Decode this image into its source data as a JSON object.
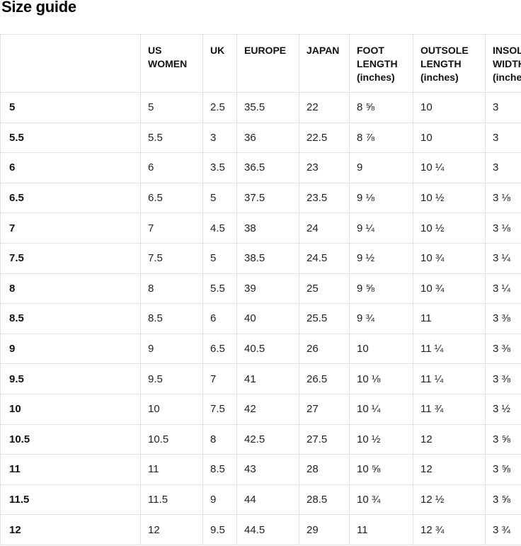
{
  "page": {
    "title": "Size guide"
  },
  "colors": {
    "background": "#ffffff",
    "border": "#e2e2e2",
    "title_text": "#000000",
    "header_text": "#111111",
    "cell_text": "#1f1f1f"
  },
  "table": {
    "columns": [
      {
        "key": "row_label",
        "label": ""
      },
      {
        "key": "us_women",
        "label": "US WOMEN"
      },
      {
        "key": "uk",
        "label": "UK"
      },
      {
        "key": "europe",
        "label": "EUROPE"
      },
      {
        "key": "japan",
        "label": "JAPAN"
      },
      {
        "key": "foot_length",
        "label": "FOOT LENGTH (inches)"
      },
      {
        "key": "outsole_length",
        "label": "OUTSOLE LENGTH (inches)"
      },
      {
        "key": "insole_width",
        "label": "INSOLE WIDTH (inches)"
      }
    ],
    "rows": [
      [
        "5",
        "5",
        "2.5",
        "35.5",
        "22",
        "8 ⅝",
        "10",
        "3"
      ],
      [
        "5.5",
        "5.5",
        "3",
        "36",
        "22.5",
        "8 ⅞",
        "10",
        "3"
      ],
      [
        "6",
        "6",
        "3.5",
        "36.5",
        "23",
        "9",
        "10 ¼",
        "3"
      ],
      [
        "6.5",
        "6.5",
        "5",
        "37.5",
        "23.5",
        "9 ⅛",
        "10 ½",
        "3 ⅛"
      ],
      [
        "7",
        "7",
        "4.5",
        "38",
        "24",
        "9 ¼",
        "10 ½",
        "3 ⅛"
      ],
      [
        "7.5",
        "7.5",
        "5",
        "38.5",
        "24.5",
        "9 ½",
        "10 ¾",
        "3 ¼"
      ],
      [
        "8",
        "8",
        "5.5",
        "39",
        "25",
        "9 ⅝",
        "10 ¾",
        "3 ¼"
      ],
      [
        "8.5",
        "8.5",
        "6",
        "40",
        "25.5",
        "9 ¾",
        "11",
        "3 ⅜"
      ],
      [
        "9",
        "9",
        "6.5",
        "40.5",
        "26",
        "10",
        "11 ¼",
        "3 ⅜"
      ],
      [
        "9.5",
        "9.5",
        "7",
        "41",
        "26.5",
        "10 ⅛",
        "11 ¼",
        "3 ⅜"
      ],
      [
        "10",
        "10",
        "7.5",
        "42",
        "27",
        "10 ¼",
        "11 ¾",
        "3 ½"
      ],
      [
        "10.5",
        "10.5",
        "8",
        "42.5",
        "27.5",
        "10 ½",
        "12",
        "3 ⅝"
      ],
      [
        "11",
        "11",
        "8.5",
        "43",
        "28",
        "10 ⅝",
        "12",
        "3 ⅝"
      ],
      [
        "11.5",
        "11.5",
        "9",
        "44",
        "28.5",
        "10 ¾",
        "12 ½",
        "3 ⅝"
      ],
      [
        "12",
        "12",
        "9.5",
        "44.5",
        "29",
        "11",
        "12 ¾",
        "3 ¾"
      ]
    ]
  }
}
